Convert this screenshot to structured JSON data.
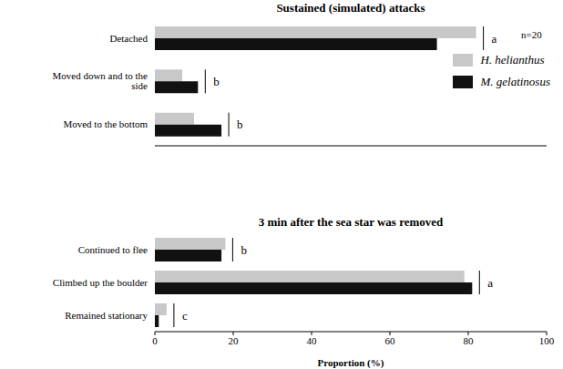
{
  "chart_data": [
    {
      "type": "bar",
      "orientation": "horizontal",
      "title": "Sustained (simulated) attacks",
      "categories": [
        "Detached",
        "Moved down and to the side",
        "Moved to the bottom"
      ],
      "series": [
        {
          "name": "H. helianthus",
          "color": "#c8c8c8",
          "values": [
            82,
            7,
            10
          ]
        },
        {
          "name": "M. gelatinosus",
          "color": "#111111",
          "values": [
            72,
            11,
            17
          ]
        }
      ],
      "significance": [
        "a",
        "b",
        "b"
      ],
      "annotation": "n=20",
      "legend": "right",
      "xlim": [
        0,
        100
      ],
      "xticks": [
        0,
        20,
        40,
        60,
        80,
        100
      ],
      "tick_labels": "y"
    },
    {
      "type": "bar",
      "orientation": "horizontal",
      "title": "3 min after the sea star was removed",
      "xlabel": "Proportion (%)",
      "categories": [
        "Continued to flee",
        "Climbed up the boulder",
        "Remained stationary"
      ],
      "series": [
        {
          "name": "H. helianthus",
          "color": "#c8c8c8",
          "values": [
            18,
            79,
            3
          ]
        },
        {
          "name": "M. gelatinosus",
          "color": "#111111",
          "values": [
            17,
            81,
            1
          ]
        }
      ],
      "significance": [
        "b",
        "a",
        "c"
      ],
      "xlim": [
        0,
        100
      ],
      "xticks": [
        0,
        20,
        40,
        60,
        80,
        100
      ]
    }
  ]
}
